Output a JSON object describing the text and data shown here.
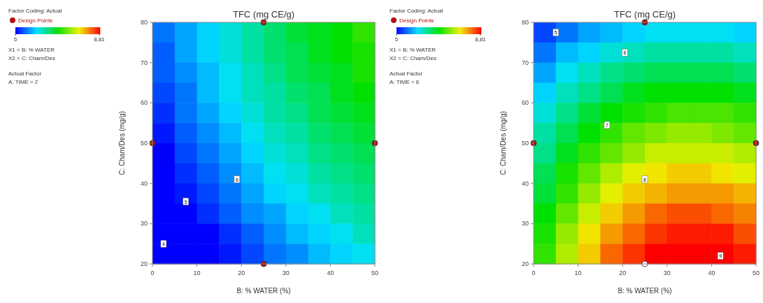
{
  "chart_data": [
    {
      "type": "heatmap",
      "title": "TFC (mg CE/g)",
      "xlabel": "B: % WATER (%)",
      "ylabel": "C: Cham/Des (mg/g)",
      "xlim": [
        0,
        50
      ],
      "xticks": [
        0,
        10,
        20,
        30,
        40,
        50
      ],
      "ylim": [
        20,
        80
      ],
      "yticks": [
        20,
        30,
        40,
        50,
        60,
        70,
        80
      ],
      "clim": [
        5,
        8.81
      ],
      "cticks": [
        5,
        {
          "value": 8.81,
          "label": "8,81"
        }
      ],
      "legend": "left",
      "cells": [
        [
          5.5,
          5.7,
          5.9,
          6.1,
          6.3,
          6.5,
          6.7,
          6.8,
          6.9,
          7.1
        ],
        [
          5.4,
          5.7,
          5.9,
          6.1,
          6.3,
          6.5,
          6.6,
          6.8,
          6.9,
          7.0
        ],
        [
          5.4,
          5.6,
          5.8,
          6.0,
          6.2,
          6.4,
          6.6,
          6.7,
          6.8,
          7.0
        ],
        [
          5.3,
          5.5,
          5.8,
          6.0,
          6.2,
          6.3,
          6.5,
          6.6,
          6.8,
          6.9
        ],
        [
          5.2,
          5.5,
          5.7,
          5.9,
          6.1,
          6.3,
          6.4,
          6.6,
          6.7,
          6.8
        ],
        [
          5.1,
          5.4,
          5.6,
          5.8,
          6.0,
          6.2,
          6.3,
          6.5,
          6.6,
          6.7
        ],
        [
          5.0,
          5.3,
          5.5,
          5.7,
          5.9,
          6.1,
          6.2,
          6.4,
          6.5,
          6.6
        ],
        [
          5.0,
          5.2,
          5.4,
          5.6,
          5.8,
          6.0,
          6.1,
          6.3,
          6.4,
          6.5
        ],
        [
          5.0,
          5.1,
          5.3,
          5.5,
          5.7,
          5.9,
          6.0,
          6.2,
          6.3,
          6.4
        ],
        [
          5.0,
          5.0,
          5.2,
          5.4,
          5.6,
          5.7,
          5.9,
          6.0,
          6.2,
          6.3
        ],
        [
          5.0,
          5.0,
          5.0,
          5.2,
          5.4,
          5.6,
          5.8,
          5.9,
          6.0,
          6.2
        ],
        [
          5.0,
          5.0,
          5.0,
          5.1,
          5.3,
          5.5,
          5.6,
          5.8,
          5.9,
          6.0
        ]
      ],
      "series": [
        {
          "type": "scatter",
          "name": "Design Points",
          "color": "#b01010",
          "x": [
            0,
            25,
            25,
            50
          ],
          "values": [
            50,
            80,
            20,
            50
          ],
          "colors": [
            "#b01010",
            "#b01010",
            "#b01010",
            "#b01010"
          ]
        }
      ],
      "annotations": [
        "Factor Coding: Actual",
        "X1 = B: % WATER",
        "X2 = C: Cham/Des",
        "Actual Factor",
        "A: TIME = 2",
        "6",
        "5",
        "4"
      ]
    },
    {
      "type": "heatmap",
      "title": "TFC (mg CE/g)",
      "xlabel": "B: % WATER (%)",
      "ylabel": "C: Cham/Des (mg/g)",
      "xlim": [
        0,
        50
      ],
      "xticks": [
        0,
        10,
        20,
        30,
        40,
        50
      ],
      "ylim": [
        20,
        80
      ],
      "yticks": [
        20,
        30,
        40,
        50,
        60,
        70,
        80
      ],
      "clim": [
        5,
        8.81
      ],
      "cticks": [
        5,
        {
          "value": 8.81,
          "label": "8,81"
        }
      ],
      "legend": "left",
      "cells": [
        [
          5.3,
          5.5,
          5.7,
          5.8,
          5.9,
          6.0,
          6.0,
          6.0,
          6.0,
          5.9
        ],
        [
          5.5,
          5.8,
          5.9,
          6.1,
          6.2,
          6.3,
          6.3,
          6.3,
          6.3,
          6.2
        ],
        [
          5.7,
          6.0,
          6.2,
          6.4,
          6.5,
          6.6,
          6.6,
          6.6,
          6.6,
          6.5
        ],
        [
          5.9,
          6.2,
          6.4,
          6.6,
          6.8,
          6.9,
          6.9,
          6.9,
          6.9,
          6.8
        ],
        [
          6.1,
          6.4,
          6.7,
          6.9,
          7.0,
          7.1,
          7.2,
          7.2,
          7.2,
          7.1
        ],
        [
          6.3,
          6.6,
          6.9,
          7.1,
          7.3,
          7.4,
          7.5,
          7.5,
          7.4,
          7.3
        ],
        [
          6.4,
          6.8,
          7.1,
          7.3,
          7.5,
          7.7,
          7.7,
          7.7,
          7.7,
          7.6
        ],
        [
          6.6,
          7.0,
          7.3,
          7.6,
          7.8,
          7.9,
          8.0,
          8.0,
          7.9,
          7.8
        ],
        [
          6.7,
          7.1,
          7.5,
          7.8,
          8.0,
          8.1,
          8.2,
          8.2,
          8.2,
          8.1
        ],
        [
          6.9,
          7.3,
          7.7,
          8.0,
          8.2,
          8.4,
          8.5,
          8.5,
          8.4,
          8.3
        ],
        [
          7.0,
          7.5,
          7.9,
          8.2,
          8.4,
          8.6,
          8.7,
          8.7,
          8.7,
          8.5
        ],
        [
          7.1,
          7.6,
          8.0,
          8.4,
          8.6,
          8.81,
          8.81,
          8.81,
          8.81,
          8.7
        ]
      ],
      "series": [
        {
          "type": "scatter",
          "name": "Design Points",
          "color": "#b01010",
          "x": [
            0,
            25,
            50,
            25
          ],
          "values": [
            50,
            80,
            50,
            20
          ],
          "colors": [
            "#b01010",
            "#b01010",
            "#b01010",
            "#ffffff"
          ]
        }
      ],
      "annotations": [
        "Factor Coding: Actual",
        "X1 = B: % WATER",
        "X2 = C: Cham/Des",
        "Actual Factor",
        "A: TIME = 6",
        "5",
        "6",
        "7",
        "8",
        "9"
      ]
    }
  ]
}
